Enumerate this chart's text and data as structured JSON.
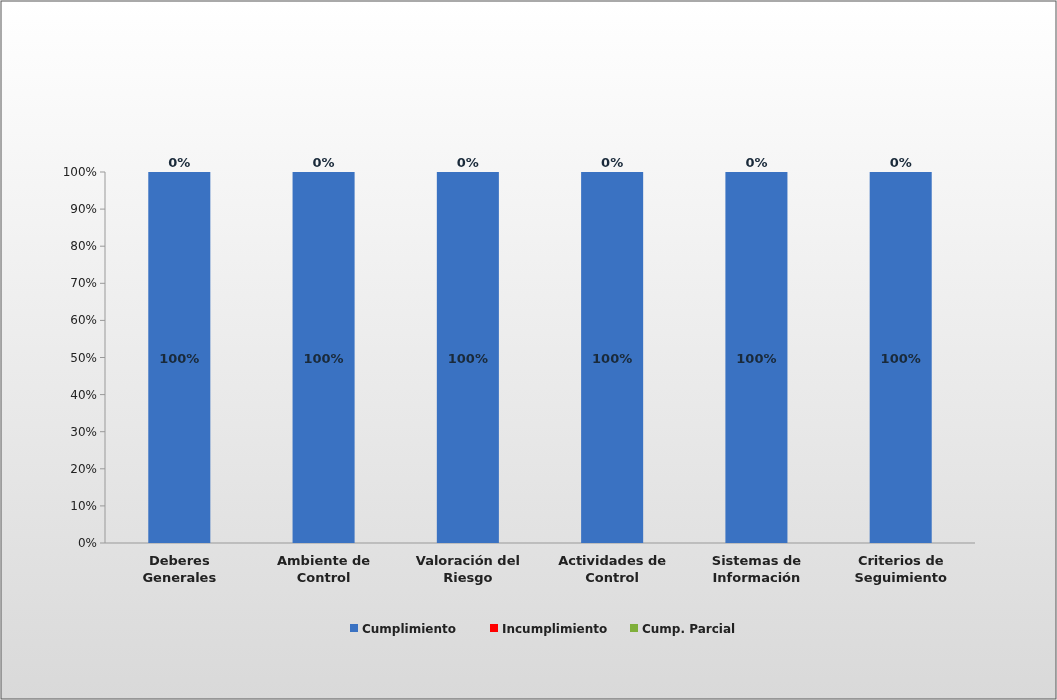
{
  "chart_data": {
    "type": "bar",
    "stacked": true,
    "categories": [
      "Deberes Generales",
      "Ambiente de Control",
      "Valoración del Riesgo",
      "Actividades de Control",
      "Sistemas de Información",
      "Criterios de Seguimiento"
    ],
    "series": [
      {
        "name": "Cumplimiento",
        "color": "#3a72c2",
        "values": [
          100,
          100,
          100,
          100,
          100,
          100
        ],
        "value_labels": [
          "100%",
          "100%",
          "100%",
          "100%",
          "100%",
          "100%"
        ]
      },
      {
        "name": "Incumplimiento",
        "color": "#ff0000",
        "values": [
          0,
          0,
          0,
          0,
          0,
          0
        ]
      },
      {
        "name": "Cump. Parcial",
        "color": "#7faf3a",
        "values": [
          0,
          0,
          0,
          0,
          0,
          0
        ],
        "value_labels": [
          "0%",
          "0%",
          "0%",
          "0%",
          "0%",
          "0%"
        ]
      }
    ],
    "ylim": [
      0,
      100
    ],
    "yticks": [
      {
        "value": 0,
        "label": "0%"
      },
      {
        "value": 10,
        "label": "10%"
      },
      {
        "value": 20,
        "label": "20%"
      },
      {
        "value": 30,
        "label": "30%"
      },
      {
        "value": 40,
        "label": "40%"
      },
      {
        "value": 50,
        "label": "50%"
      },
      {
        "value": 60,
        "label": "60%"
      },
      {
        "value": 70,
        "label": "70%"
      },
      {
        "value": 80,
        "label": "80%"
      },
      {
        "value": 90,
        "label": "90%"
      },
      {
        "value": 100,
        "label": "100%"
      }
    ],
    "legend": "bottom"
  }
}
